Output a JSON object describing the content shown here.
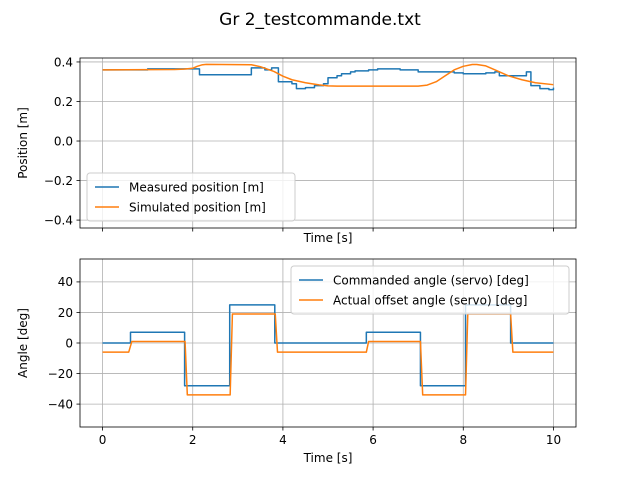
{
  "figure": {
    "title": "Gr 2_testcommande.txt"
  },
  "chart_data": [
    {
      "type": "line",
      "xlabel": "Time [s]",
      "ylabel": "Position [m]",
      "xlim": [
        -0.5,
        10.5
      ],
      "ylim": [
        -0.44,
        0.42
      ],
      "x_ticks": [
        0,
        2,
        4,
        6,
        8,
        10
      ],
      "y_ticks": [
        -0.4,
        -0.2,
        0.0,
        0.2,
        0.4
      ],
      "y_tick_labels": [
        "−0.4",
        "−0.2",
        "0.0",
        "0.2",
        "0.4"
      ],
      "show_x_tick_labels": false,
      "grid": true,
      "legend_position": "lower-left",
      "series": [
        {
          "name": "Measured position [m]",
          "color": "#1f77b4",
          "step": true,
          "x": [
            0,
            0.9,
            1.0,
            2.1,
            2.15,
            3.2,
            3.3,
            3.5,
            3.6,
            3.75,
            3.9,
            4.2,
            4.3,
            4.5,
            4.7,
            4.9,
            5.0,
            5.2,
            5.3,
            5.5,
            5.6,
            5.9,
            6.1,
            6.4,
            6.6,
            6.9,
            7.0,
            7.7,
            7.8,
            8.0,
            8.4,
            8.5,
            8.7,
            8.8,
            9.1,
            9.4,
            9.5,
            9.7,
            9.9,
            10.0
          ],
          "values": [
            0.36,
            0.36,
            0.365,
            0.365,
            0.335,
            0.335,
            0.37,
            0.37,
            0.36,
            0.37,
            0.3,
            0.29,
            0.265,
            0.27,
            0.28,
            0.29,
            0.32,
            0.33,
            0.34,
            0.35,
            0.355,
            0.36,
            0.365,
            0.365,
            0.36,
            0.36,
            0.35,
            0.35,
            0.345,
            0.34,
            0.34,
            0.345,
            0.35,
            0.33,
            0.33,
            0.35,
            0.28,
            0.265,
            0.26,
            0.27
          ]
        },
        {
          "name": "Simulated position [m]",
          "color": "#ff7f0e",
          "step": false,
          "x": [
            0,
            1.6,
            1.8,
            2.0,
            2.1,
            2.2,
            2.3,
            3.3,
            3.5,
            3.8,
            4.0,
            4.2,
            4.5,
            4.8,
            5.0,
            5.2,
            6.0,
            7.0,
            7.2,
            7.4,
            7.6,
            7.8,
            8.0,
            8.2,
            8.3,
            8.5,
            8.7,
            9.0,
            9.3,
            9.6,
            10.0
          ],
          "values": [
            0.36,
            0.362,
            0.364,
            0.368,
            0.378,
            0.385,
            0.388,
            0.386,
            0.376,
            0.352,
            0.328,
            0.31,
            0.295,
            0.284,
            0.279,
            0.278,
            0.278,
            0.278,
            0.283,
            0.3,
            0.33,
            0.36,
            0.378,
            0.387,
            0.387,
            0.38,
            0.36,
            0.33,
            0.31,
            0.295,
            0.285
          ]
        }
      ]
    },
    {
      "type": "line",
      "xlabel": "Time [s]",
      "ylabel": "Angle [deg]",
      "xlim": [
        -0.5,
        10.5
      ],
      "ylim": [
        -55,
        55
      ],
      "x_ticks": [
        0,
        2,
        4,
        6,
        8,
        10
      ],
      "y_ticks": [
        -40,
        -20,
        0,
        20,
        40
      ],
      "y_tick_labels": [
        "−40",
        "−20",
        "0",
        "20",
        "40"
      ],
      "show_x_tick_labels": true,
      "grid": true,
      "legend_position": "upper-right",
      "series": [
        {
          "name": "Commanded angle (servo) [deg]",
          "color": "#1f77b4",
          "step": false,
          "x": [
            0,
            0.62,
            0.62,
            1.82,
            1.82,
            2.82,
            2.82,
            3.82,
            3.82,
            5.85,
            5.85,
            7.05,
            7.05,
            8.05,
            8.05,
            9.05,
            9.05,
            10.0
          ],
          "values": [
            0,
            0,
            7,
            7,
            -28,
            -28,
            25,
            25,
            0,
            0,
            7,
            7,
            -28,
            -28,
            25,
            25,
            0,
            0
          ]
        },
        {
          "name": "Actual offset angle (servo) [deg]",
          "color": "#ff7f0e",
          "step": false,
          "x": [
            0,
            0.58,
            0.65,
            1.83,
            1.88,
            2.83,
            2.88,
            3.83,
            3.88,
            5.85,
            5.9,
            7.05,
            7.1,
            8.05,
            8.1,
            9.05,
            9.1,
            10.0
          ],
          "values": [
            -6,
            -6,
            1,
            1,
            -34,
            -34,
            19,
            19,
            -6,
            -6,
            1,
            1,
            -34,
            -34,
            19,
            19,
            -6,
            -6
          ]
        }
      ]
    }
  ]
}
